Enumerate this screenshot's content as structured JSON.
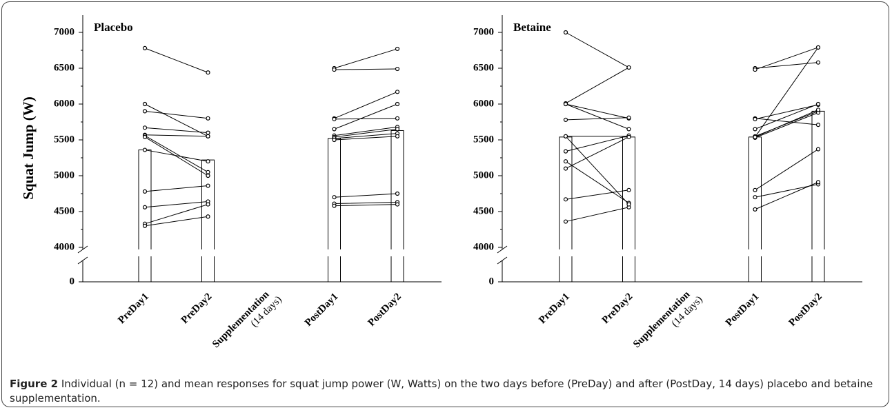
{
  "chart_data": [
    {
      "type": "bar",
      "title": "Placebo",
      "ylabel": "Squat Jump (W)",
      "categories": [
        "PreDay1",
        "PreDay2",
        "Supplementation (14 days)",
        "PostDay1",
        "PostDay2"
      ],
      "values": [
        5360,
        5220,
        null,
        5520,
        5630
      ],
      "color": "#ffffff",
      "series": [
        {
          "color": "#000000",
          "values": [
            6780,
            6440,
            null,
            6500,
            6770
          ]
        },
        {
          "color": "#000000",
          "values": [
            6000,
            5550,
            null,
            6480,
            6490
          ]
        },
        {
          "color": "#000000",
          "values": [
            5900,
            5800,
            null,
            5800,
            6170
          ]
        },
        {
          "color": "#000000",
          "values": [
            5670,
            5600,
            null,
            5790,
            5800
          ]
        },
        {
          "color": "#000000",
          "values": [
            5570,
            5550,
            null,
            5650,
            6000
          ]
        },
        {
          "color": "#000000",
          "values": [
            5560,
            5050,
            null,
            5560,
            5680
          ]
        },
        {
          "color": "#000000",
          "values": [
            5540,
            5000,
            null,
            5540,
            5650
          ]
        },
        {
          "color": "#000000",
          "values": [
            5360,
            5200,
            null,
            5520,
            5590
          ]
        },
        {
          "color": "#000000",
          "values": [
            4780,
            4860,
            null,
            5500,
            5550
          ]
        },
        {
          "color": "#000000",
          "values": [
            4560,
            4640,
            null,
            4700,
            4750
          ]
        },
        {
          "color": "#000000",
          "values": [
            4330,
            4600,
            null,
            4610,
            4630
          ]
        },
        {
          "color": "#000000",
          "values": [
            4300,
            4430,
            null,
            4580,
            4600
          ]
        }
      ],
      "ylim": [
        0,
        7000
      ],
      "axis_break": [
        0,
        4000
      ],
      "yticks": [
        0,
        4000,
        4500,
        5000,
        5500,
        6000,
        6500,
        7000
      ]
    },
    {
      "type": "bar",
      "title": "Betaine",
      "categories": [
        "PreDay1",
        "PreDay2",
        "Supplementation (14 days)",
        "PostDay1",
        "PostDay2"
      ],
      "values": [
        5540,
        5540,
        null,
        5540,
        5900
      ],
      "color": "#ffffff",
      "series": [
        {
          "color": "#000000",
          "values": [
            7000,
            6510,
            null,
            6500,
            6580
          ]
        },
        {
          "color": "#000000",
          "values": [
            6010,
            6510,
            null,
            6480,
            6790
          ]
        },
        {
          "color": "#000000",
          "values": [
            6000,
            5800,
            null,
            5800,
            5710
          ]
        },
        {
          "color": "#000000",
          "values": [
            6000,
            5650,
            null,
            5790,
            5990
          ]
        },
        {
          "color": "#000000",
          "values": [
            5780,
            5810,
            null,
            5650,
            6000
          ]
        },
        {
          "color": "#000000",
          "values": [
            5550,
            5550,
            null,
            5540,
            6790
          ]
        },
        {
          "color": "#000000",
          "values": [
            5340,
            5560,
            null,
            5550,
            5900
          ]
        },
        {
          "color": "#000000",
          "values": [
            5200,
            4620,
            null,
            5530,
            5880
          ]
        },
        {
          "color": "#000000",
          "values": [
            5100,
            5540,
            null,
            5540,
            5920
          ]
        },
        {
          "color": "#000000",
          "values": [
            4670,
            4800,
            null,
            4800,
            5370
          ]
        },
        {
          "color": "#000000",
          "values": [
            4360,
            4560,
            null,
            4700,
            4880
          ]
        },
        {
          "color": "#000000",
          "values": [
            5550,
            4600,
            null,
            4530,
            4910
          ]
        }
      ],
      "ylim": [
        0,
        7000
      ],
      "axis_break": [
        0,
        4000
      ],
      "yticks": [
        0,
        4000,
        4500,
        5000,
        5500,
        6000,
        6500,
        7000
      ]
    }
  ],
  "caption": {
    "label": "Figure 2",
    "text": "Individual (n = 12) and mean responses for squat jump power (W, Watts) on the two days before (PreDay) and after (PostDay, 14 days) placebo and betaine supplementation."
  }
}
